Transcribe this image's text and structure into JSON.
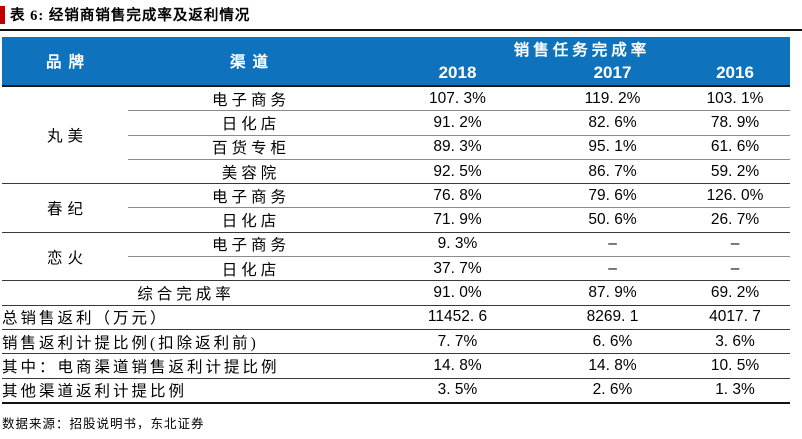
{
  "title": "表 6: 经销商销售完成率及返利情况",
  "colors": {
    "header_bg": "#0e72bc",
    "header_text": "#ffffff",
    "accent_red": "#c00000",
    "rule_dark": "#1a1a1a",
    "rule_gray": "#8c8c8c"
  },
  "table": {
    "brand_header": "品牌",
    "channel_header": "渠道",
    "span_header": "销售任务完成率",
    "years": [
      "2018",
      "2017",
      "2016"
    ],
    "groups": [
      {
        "brand": "丸美",
        "rows": [
          {
            "channel": "电子商务",
            "values": [
              "107. 3%",
              "119. 2%",
              "103. 1%"
            ]
          },
          {
            "channel": "日化店",
            "values": [
              "91. 2%",
              "82. 6%",
              "78. 9%"
            ]
          },
          {
            "channel": "百货专柜",
            "values": [
              "89. 3%",
              "95. 1%",
              "61. 6%"
            ]
          },
          {
            "channel": "美容院",
            "values": [
              "92. 5%",
              "86. 7%",
              "59. 2%"
            ]
          }
        ]
      },
      {
        "brand": "春纪",
        "rows": [
          {
            "channel": "电子商务",
            "values": [
              "76. 8%",
              "79. 6%",
              "126. 0%"
            ]
          },
          {
            "channel": "日化店",
            "values": [
              "71. 9%",
              "50. 6%",
              "26. 7%"
            ]
          }
        ]
      },
      {
        "brand": "恋火",
        "rows": [
          {
            "channel": "电子商务",
            "values": [
              "9. 3%",
              "–",
              "–"
            ]
          },
          {
            "channel": "日化店",
            "values": [
              "37. 7%",
              "–",
              "–"
            ]
          }
        ]
      }
    ],
    "summary_rows": [
      {
        "label": "综合完成率",
        "align": "center",
        "values": [
          "91. 0%",
          "87. 9%",
          "69. 2%"
        ]
      },
      {
        "label": "总销售返利（万元）",
        "align": "left",
        "values": [
          "11452. 6",
          "8269. 1",
          "4017. 7"
        ]
      },
      {
        "label": "销售返利计提比例(扣除返利前)",
        "align": "left",
        "values": [
          "7. 7%",
          "6. 6%",
          "3. 6%"
        ]
      },
      {
        "label": "其中：电商渠道销售返利计提比例",
        "align": "left",
        "values": [
          "14. 8%",
          "14. 8%",
          "10. 5%"
        ]
      },
      {
        "label": "其他渠道返利计提比例",
        "align": "indent",
        "values": [
          "3. 5%",
          "2. 6%",
          "1. 3%"
        ]
      }
    ]
  },
  "footer": {
    "source": "数据来源：招股说明书，东北证券"
  }
}
